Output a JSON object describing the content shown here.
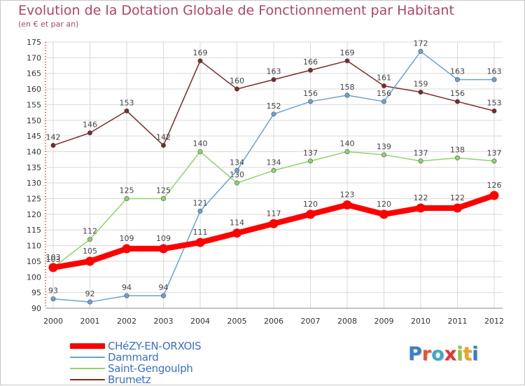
{
  "title": "Evolution de la Dotation Globale de Fonctionnement par Habitant",
  "subtitle": "(en € et par an)",
  "logo": {
    "text": "Proxiti",
    "letter_colors": [
      "#3a7fc8",
      "#e8562e",
      "#3fa9c9",
      "#e4332d",
      "#8cc63f",
      "#f2a21b",
      "#2e7fd0"
    ]
  },
  "chart_data": {
    "type": "line",
    "title": "Evolution de la Dotation Globale de Fonctionnement par Habitant",
    "subtitle": "(en € et par an)",
    "x": [
      "2000",
      "2001",
      "2002",
      "2003",
      "2004",
      "2005",
      "2006",
      "2007",
      "2008",
      "2009",
      "2010",
      "2011",
      "2012"
    ],
    "ylim": [
      90,
      175
    ],
    "yticks": [
      90,
      95,
      100,
      105,
      110,
      115,
      120,
      125,
      130,
      135,
      140,
      145,
      150,
      155,
      160,
      165,
      170,
      175
    ],
    "grid": true,
    "legend_position": "bottom-left",
    "series": [
      {
        "name": "Brumetz",
        "color": "#7b2a2a",
        "values": [
          142,
          146,
          153,
          142,
          169,
          160,
          163,
          166,
          169,
          161,
          159,
          156,
          153
        ],
        "labels": [
          "142",
          "146",
          "153",
          "142",
          "169",
          "160",
          "163",
          "166",
          "169",
          "161",
          "159",
          "156",
          "153"
        ]
      },
      {
        "name": "Saint-Gengoulph",
        "color": "#8fd36a",
        "values": [
          103,
          112,
          125,
          125,
          140,
          130,
          134,
          137,
          140,
          139,
          137,
          138,
          137
        ],
        "labels": [
          "103",
          "112",
          "125",
          "125",
          "140",
          "130",
          "134",
          "137",
          "140",
          "139",
          "137",
          "138",
          "137"
        ]
      },
      {
        "name": "Dammard",
        "color": "#6aa2d2",
        "values": [
          93,
          92,
          94,
          94,
          121,
          134,
          152,
          156,
          158,
          156,
          172,
          163,
          163
        ],
        "labels": [
          "93",
          "92",
          "94",
          "94",
          "121",
          "134",
          "152",
          "156",
          "158",
          "156",
          "172",
          "163",
          "163"
        ]
      },
      {
        "name": "CHéZY-EN-ORXOIS",
        "color": "#ff0000",
        "values": [
          103,
          105,
          109,
          109,
          111,
          114,
          117,
          120,
          123,
          120,
          122,
          122,
          126
        ],
        "labels": [
          "103",
          "105",
          "109",
          "109",
          "111",
          "114",
          "117",
          "120",
          "123",
          "120",
          "122",
          "122",
          "126"
        ]
      }
    ]
  },
  "legend": [
    {
      "label": "CHéZY-EN-ORXOIS",
      "color": "#ff0000",
      "thickness": 8
    },
    {
      "label": "Dammard",
      "color": "#6aa2d2",
      "thickness": 2
    },
    {
      "label": "Saint-Gengoulph",
      "color": "#8fd36a",
      "thickness": 2
    },
    {
      "label": "Brumetz",
      "color": "#7b2a2a",
      "thickness": 2
    }
  ]
}
